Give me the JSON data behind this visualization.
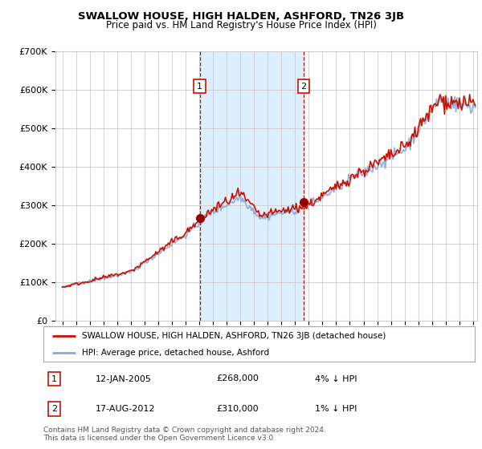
{
  "title": "SWALLOW HOUSE, HIGH HALDEN, ASHFORD, TN26 3JB",
  "subtitle": "Price paid vs. HM Land Registry's House Price Index (HPI)",
  "ylim": [
    0,
    700000
  ],
  "xlim_start": 1994.5,
  "xlim_end": 2025.3,
  "sale1_date": 2005.04,
  "sale1_label": "1",
  "sale1_price": 268000,
  "sale1_text": "12-JAN-2005",
  "sale1_pct": "4% ↓ HPI",
  "sale2_date": 2012.63,
  "sale2_label": "2",
  "sale2_price": 310000,
  "sale2_text": "17-AUG-2012",
  "sale2_pct": "1% ↓ HPI",
  "hpi_color": "#88aadd",
  "price_color": "#cc1100",
  "shaded_color": "#ddeeff",
  "vline_color": "#cc1100",
  "legend_house": "SWALLOW HOUSE, HIGH HALDEN, ASHFORD, TN26 3JB (detached house)",
  "legend_hpi": "HPI: Average price, detached house, Ashford",
  "footnote": "Contains HM Land Registry data © Crown copyright and database right 2024.\nThis data is licensed under the Open Government Licence v3.0.",
  "background_color": "#ffffff",
  "grid_color": "#cccccc"
}
